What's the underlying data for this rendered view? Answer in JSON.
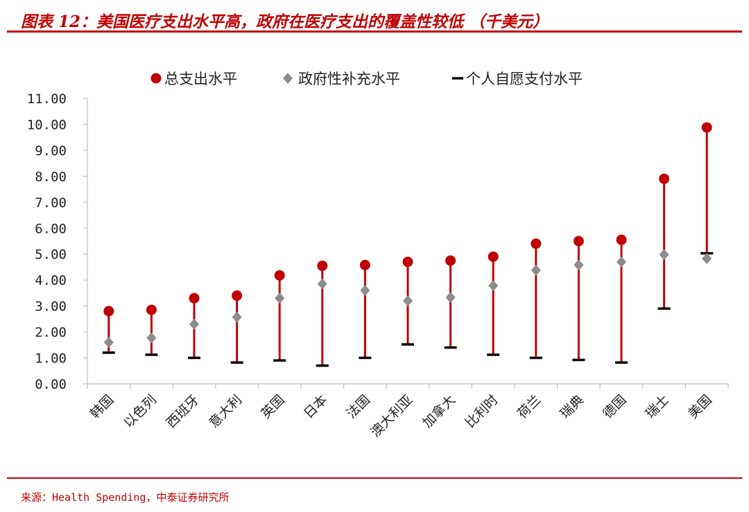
{
  "header": {
    "title": "图表 12：美国医疗支出水平高，政府在医疗支出的覆盖性较低 （千美元）"
  },
  "footer": {
    "source": "来源：Health Spending，中泰证券研究所"
  },
  "colors": {
    "accent": "#c00000",
    "total": "#c00000",
    "government": "#8c8c8c",
    "voluntary": "#000000",
    "axis": "#bfbfbf"
  },
  "chart_data": {
    "type": "scatter",
    "title": "",
    "xlabel": "",
    "ylabel": "",
    "ylim": [
      0,
      11
    ],
    "y_ticks": [
      "0.00",
      "1.00",
      "2.00",
      "3.00",
      "4.00",
      "5.00",
      "6.00",
      "7.00",
      "8.00",
      "9.00",
      "10.00",
      "11.00"
    ],
    "grid": false,
    "legend_position": "top",
    "categories": [
      "韩国",
      "以色列",
      "西班牙",
      "意大利",
      "英国",
      "日本",
      "法国",
      "澳大利亚",
      "加拿大",
      "比利时",
      "荷兰",
      "瑞典",
      "德国",
      "瑞士",
      "美国"
    ],
    "series": [
      {
        "name": "总支出水平",
        "marker": "circle",
        "color": "#c00000",
        "values": [
          2.8,
          2.85,
          3.3,
          3.4,
          4.18,
          4.55,
          4.58,
          4.7,
          4.75,
          4.9,
          5.4,
          5.5,
          5.55,
          7.9,
          9.88
        ]
      },
      {
        "name": "政府性补充水平",
        "marker": "diamond",
        "color": "#8c8c8c",
        "values": [
          1.6,
          1.77,
          2.3,
          2.57,
          3.3,
          3.85,
          3.6,
          3.2,
          3.33,
          3.78,
          4.38,
          4.58,
          4.7,
          4.98,
          4.83
        ]
      },
      {
        "name": "个人自愿支付水平",
        "marker": "dash",
        "color": "#000000",
        "values": [
          1.2,
          1.12,
          1.0,
          0.82,
          0.9,
          0.7,
          1.0,
          1.52,
          1.4,
          1.12,
          1.0,
          0.92,
          0.82,
          2.9,
          5.03
        ]
      }
    ]
  }
}
